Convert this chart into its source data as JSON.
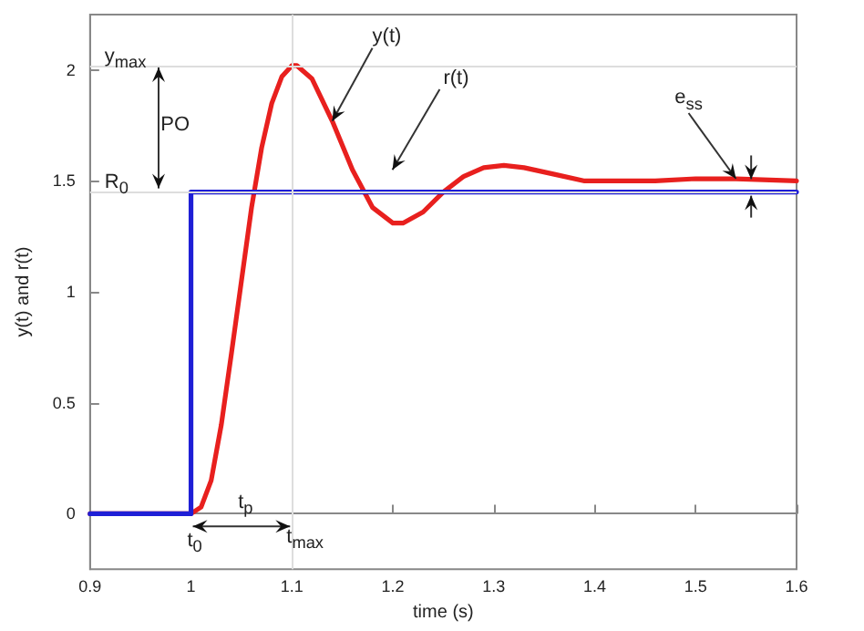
{
  "chart_data": {
    "type": "line",
    "xlabel": "time (s)",
    "ylabel": "y(t) and r(t)",
    "xlim": [
      0.9,
      1.6
    ],
    "xticks": [
      0.9,
      1,
      1.1,
      1.2,
      1.3,
      1.4,
      1.5,
      1.6
    ],
    "ylim": [
      -0.25,
      2.25
    ],
    "yticks": [
      0,
      0.5,
      1,
      1.5,
      2
    ],
    "grid": false,
    "marker": "none",
    "line_style": "solid",
    "series": [
      {
        "color": "#e8201e",
        "x": [
          0.9,
          1.0,
          1.01,
          1.02,
          1.03,
          1.04,
          1.05,
          1.06,
          1.07,
          1.08,
          1.09,
          1.1,
          1.105,
          1.12,
          1.14,
          1.16,
          1.18,
          1.2,
          1.21,
          1.23,
          1.25,
          1.27,
          1.29,
          1.31,
          1.33,
          1.36,
          1.39,
          1.42,
          1.46,
          1.5,
          1.54,
          1.6
        ],
        "values": [
          0,
          0,
          0.03,
          0.15,
          0.4,
          0.72,
          1.05,
          1.38,
          1.65,
          1.85,
          1.97,
          2.02,
          2.02,
          1.96,
          1.77,
          1.55,
          1.38,
          1.31,
          1.31,
          1.36,
          1.45,
          1.52,
          1.56,
          1.57,
          1.56,
          1.53,
          1.5,
          1.5,
          1.5,
          1.51,
          1.51,
          1.5
        ]
      },
      {
        "color": "#1f1fd6",
        "x": [
          0.9,
          1.0,
          1.0,
          1.6
        ],
        "values": [
          0,
          0,
          1.45,
          1.45
        ]
      }
    ],
    "ref_lines": [
      {
        "axis": "y",
        "value": 2.02,
        "label": "y$_{max}$",
        "color": "#dddddd"
      },
      {
        "axis": "y",
        "value": 1.45,
        "label": "R$_{0}$",
        "color": "#dddddd"
      },
      {
        "axis": "x",
        "value": 1.1,
        "label": "t$_{max}$",
        "color": "#dddddd"
      }
    ],
    "annotations": [
      {
        "text": "y(t)",
        "x": 1.14,
        "y": 1.77
      },
      "r(t)",
      {
        "text": "e$_{ss}$",
        "x": 1.54,
        "y": 1.51
      },
      "PO",
      "t$_{p}$",
      {
        "text": "t$_{0}$",
        "x": 1.0,
        "y": 0
      }
    ]
  }
}
